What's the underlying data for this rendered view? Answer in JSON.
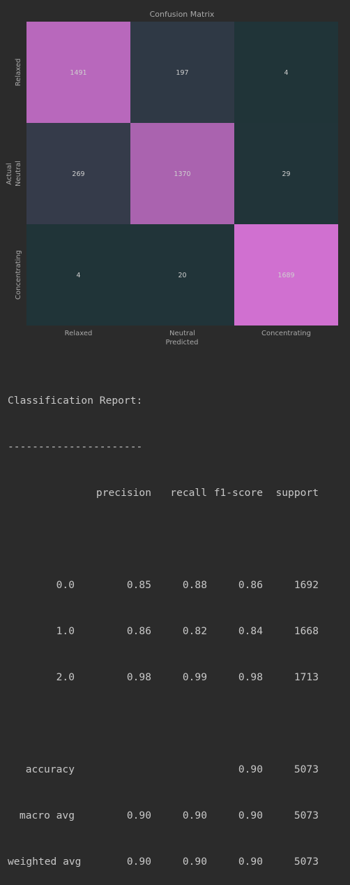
{
  "chart_data": {
    "type": "heatmap",
    "title": "Confusion Matrix",
    "xlabel": "Predicted",
    "ylabel": "Actual",
    "x_categories": [
      "Relaxed",
      "Neutral",
      "Concentrating"
    ],
    "y_categories": [
      "Relaxed",
      "Neutral",
      "Concentrating"
    ],
    "values": [
      [
        1491,
        197,
        4
      ],
      [
        269,
        1370,
        29
      ],
      [
        4,
        20,
        1689
      ]
    ],
    "colormap": {
      "low": "#203438",
      "high": "#d070d0"
    },
    "colorbar": false
  },
  "report": {
    "title": "Classification Report:",
    "separator": "----------------------",
    "headers": [
      "precision",
      "recall",
      "f1-score",
      "support"
    ],
    "rows": [
      {
        "label": "0.0",
        "values": [
          "0.85",
          "0.88",
          "0.86",
          "1692"
        ]
      },
      {
        "label": "1.0",
        "values": [
          "0.86",
          "0.82",
          "0.84",
          "1668"
        ]
      },
      {
        "label": "2.0",
        "values": [
          "0.98",
          "0.99",
          "0.98",
          "1713"
        ]
      }
    ],
    "summary": [
      {
        "label": "accuracy",
        "values": [
          "",
          "",
          "0.90",
          "5073"
        ]
      },
      {
        "label": "macro avg",
        "values": [
          "0.90",
          "0.90",
          "0.90",
          "5073"
        ]
      },
      {
        "label": "weighted avg",
        "values": [
          "0.90",
          "0.90",
          "0.90",
          "5073"
        ]
      }
    ]
  }
}
